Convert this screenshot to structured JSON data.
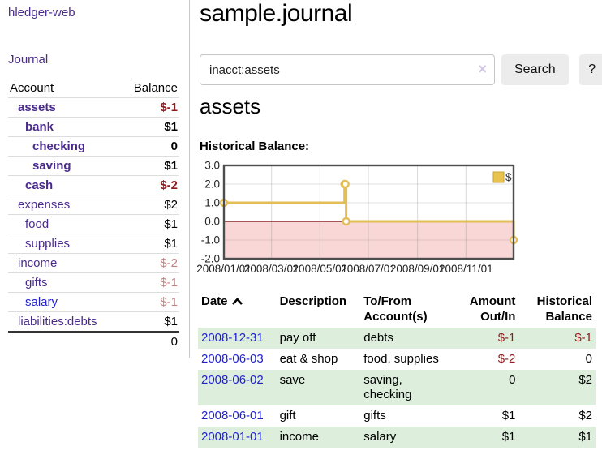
{
  "colors": {
    "accent_purple": "#4a2b8c",
    "link_blue": "#2222cc",
    "negative_red": "#8f1d1d",
    "negative_muted": "#c28383",
    "stripe_green": "#ddeedd",
    "chart_line_gold": "#e3bd55",
    "chart_negative_fill": "#f9d7d7",
    "chart_zero_line": "#7a0b0b",
    "button_gray": "#ececec"
  },
  "app": {
    "title": "hledger-web"
  },
  "sidebar": {
    "journal_label": "Journal",
    "accounts": {
      "header_account": "Account",
      "header_balance": "Balance",
      "rows": [
        {
          "name": "assets",
          "balance": "$-1",
          "depth": 1,
          "bold": true,
          "link": "purple",
          "tone": "neg"
        },
        {
          "name": "bank",
          "balance": "$1",
          "depth": 2,
          "bold": true,
          "link": "purple",
          "tone": ""
        },
        {
          "name": "checking",
          "balance": "0",
          "depth": 3,
          "bold": true,
          "link": "purple",
          "tone": ""
        },
        {
          "name": "saving",
          "balance": "$1",
          "depth": 3,
          "bold": true,
          "link": "purple",
          "tone": ""
        },
        {
          "name": "cash",
          "balance": "$-2",
          "depth": 2,
          "bold": true,
          "link": "purple",
          "tone": "neg"
        },
        {
          "name": "expenses",
          "balance": "$2",
          "depth": 1,
          "bold": false,
          "link": "purple",
          "tone": ""
        },
        {
          "name": "food",
          "balance": "$1",
          "depth": 2,
          "bold": false,
          "link": "purple",
          "tone": ""
        },
        {
          "name": "supplies",
          "balance": "$1",
          "depth": 2,
          "bold": false,
          "link": "purple",
          "tone": ""
        },
        {
          "name": "income",
          "balance": "$-2",
          "depth": 1,
          "bold": false,
          "link": "purple",
          "tone": "negm"
        },
        {
          "name": "gifts",
          "balance": "$-1",
          "depth": 2,
          "bold": false,
          "link": "purple",
          "tone": "negm"
        },
        {
          "name": "salary",
          "balance": "$-1",
          "depth": 2,
          "bold": false,
          "link": "blue",
          "tone": "negm"
        },
        {
          "name": "liabilities:debts",
          "balance": "$1",
          "depth": 1,
          "bold": false,
          "link": "purple",
          "tone": ""
        }
      ],
      "total": "0"
    }
  },
  "main": {
    "title": "sample.journal",
    "search": {
      "value": "inacct:assets",
      "clear_icon": "×",
      "button_label": "Search",
      "help_label": "?"
    },
    "account_heading": "assets",
    "chart_label": "Historical Balance:"
  },
  "chart_data": {
    "type": "line",
    "title": "Historical Balance:",
    "series": [
      {
        "name": "$",
        "color": "#e3bd55",
        "points": [
          [
            "2008-01-01",
            1
          ],
          [
            "2008-06-01",
            2
          ],
          [
            "2008-06-02",
            2
          ],
          [
            "2008-06-03",
            0
          ],
          [
            "2008-12-31",
            -1
          ]
        ]
      }
    ],
    "step": true,
    "xlim": [
      "2008-01-01",
      "2008-12-31"
    ],
    "ylim": [
      -2,
      3
    ],
    "x_ticks": [
      "2008/01/01",
      "2008/03/01",
      "2008/05/01",
      "2008/07/01",
      "2008/09/01",
      "2008/11/01"
    ],
    "y_ticks": [
      "3.0",
      "2.0",
      "1.0",
      "0.0",
      "-1.0",
      "-2.0"
    ],
    "grid": true,
    "legend": {
      "label": "$",
      "swatch_color": "#e8c34f",
      "position": "top-right"
    },
    "negative_region_fill": "#f9d7d7",
    "zero_line_color": "#7a0b0b"
  },
  "transactions": {
    "headers": [
      {
        "label": "Date",
        "align": "left",
        "sorted_asc": true
      },
      {
        "label": "Description",
        "align": "left"
      },
      {
        "label": "To/From Account(s)",
        "align": "left"
      },
      {
        "label": "Amount Out/In",
        "align": "right"
      },
      {
        "label": "Historical Balance",
        "align": "right"
      }
    ],
    "rows": [
      {
        "date": "2008-12-31",
        "description": "pay off",
        "accounts": "debts",
        "amount": "$-1",
        "amount_neg": true,
        "balance": "$-1",
        "balance_neg": true
      },
      {
        "date": "2008-06-03",
        "description": "eat & shop",
        "accounts": "food, supplies",
        "amount": "$-2",
        "amount_neg": true,
        "balance": "0",
        "balance_neg": false
      },
      {
        "date": "2008-06-02",
        "description": "save",
        "accounts": "saving, checking",
        "amount": "0",
        "amount_neg": false,
        "balance": "$2",
        "balance_neg": false
      },
      {
        "date": "2008-06-01",
        "description": "gift",
        "accounts": "gifts",
        "amount": "$1",
        "amount_neg": false,
        "balance": "$2",
        "balance_neg": false
      },
      {
        "date": "2008-01-01",
        "description": "income",
        "accounts": "salary",
        "amount": "$1",
        "amount_neg": false,
        "balance": "$1",
        "balance_neg": false
      }
    ]
  }
}
